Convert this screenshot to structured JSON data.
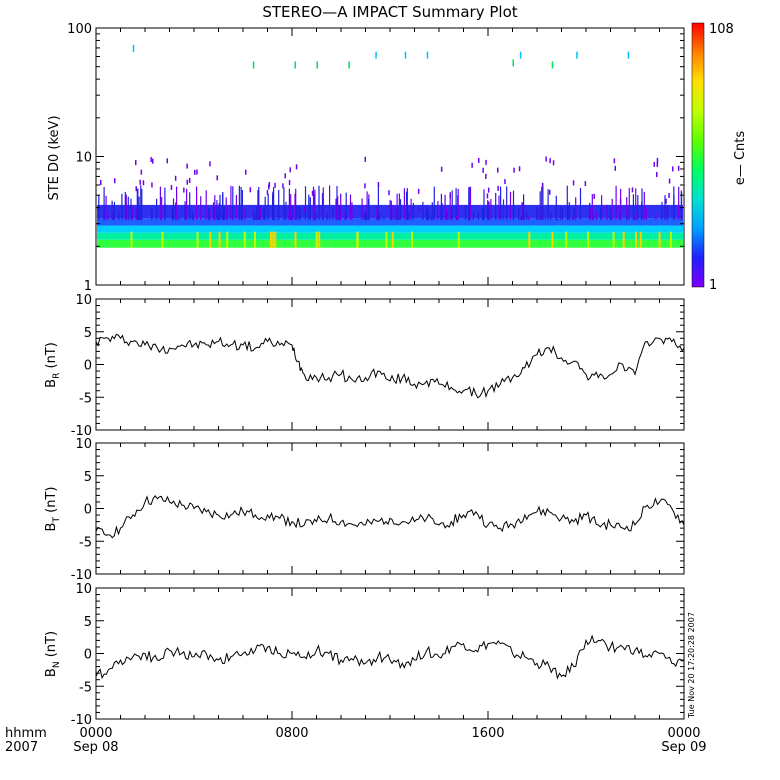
{
  "title": "STEREO—A IMPACT Summary Plot",
  "timestamp_note": "Tue Nov 20 17:20:28 2007",
  "x_axis": {
    "corner_top": "hhmm",
    "corner_bottom": "2007",
    "ticks": [
      {
        "hour": 0,
        "top": "0000",
        "bottom": "Sep 08"
      },
      {
        "hour": 8,
        "top": "0800",
        "bottom": ""
      },
      {
        "hour": 16,
        "top": "1600",
        "bottom": ""
      },
      {
        "hour": 24,
        "top": "0000",
        "bottom": "Sep 09"
      }
    ]
  },
  "colorbar": {
    "label": "e— Cnts",
    "max_label": "108",
    "min_label": "1",
    "colors": [
      "#7f00ff",
      "#2020ff",
      "#00a0ff",
      "#00e0d0",
      "#00ff60",
      "#60ff00",
      "#c0ff00",
      "#ffe000",
      "#ff8000",
      "#ff0000"
    ]
  },
  "chart_data": [
    {
      "type": "heatmap",
      "ylabel": "STE D0 (keV)",
      "yscale": "log",
      "ylim": [
        1,
        100
      ],
      "xlim": [
        0,
        24
      ],
      "y_ticks": [
        "1",
        "10",
        "100"
      ],
      "ylabel_lines": [
        "STE D0 (keV)"
      ],
      "description": "Electron count spectrogram; dense counts between ~2 and ~4 keV across the full day, sparse isolated counts at higher energies"
    },
    {
      "type": "line",
      "ylabel": "B_R (nT)",
      "ylabel_main": "B",
      "ylabel_sub": "R",
      "ylabel_unit": " (nT)",
      "ylim": [
        -10,
        10
      ],
      "xlim": [
        0,
        24
      ],
      "y_ticks": [
        "10",
        "5",
        "0",
        "-5",
        "-10"
      ],
      "x": [
        0,
        0.5,
        1,
        1.5,
        2,
        2.5,
        3,
        3.5,
        4,
        4.5,
        5,
        5.5,
        6,
        6.5,
        7,
        7.5,
        8,
        8.25,
        8.5,
        9,
        9.5,
        10,
        10.5,
        11,
        11.5,
        12,
        12.5,
        13,
        13.5,
        14,
        14.5,
        15,
        15.5,
        16,
        16.5,
        17,
        17.5,
        18,
        18.5,
        19,
        19.5,
        20,
        20.5,
        21,
        21.5,
        22,
        22.5,
        23,
        23.5,
        24
      ],
      "values": [
        3.5,
        4.0,
        4.0,
        3.5,
        3.0,
        2.5,
        2.5,
        3.0,
        3.0,
        3.0,
        3.5,
        3.0,
        3.0,
        2.5,
        3.5,
        3.0,
        3.0,
        0.5,
        -1.5,
        -2.0,
        -2.0,
        -1.5,
        -2.5,
        -2.0,
        -1.0,
        -2.5,
        -2.0,
        -3.0,
        -2.5,
        -3.0,
        -3.5,
        -4.0,
        -4.5,
        -4.0,
        -3.0,
        -2.0,
        -0.5,
        1.5,
        2.5,
        1.0,
        0.5,
        -1.5,
        -2.0,
        -1.5,
        0.0,
        -1.5,
        3.5,
        4.0,
        3.5,
        2.5
      ]
    },
    {
      "type": "line",
      "ylabel": "B_T (nT)",
      "ylabel_main": "B",
      "ylabel_sub": "T",
      "ylabel_unit": " (nT)",
      "ylim": [
        -10,
        10
      ],
      "xlim": [
        0,
        24
      ],
      "y_ticks": [
        "10",
        "5",
        "0",
        "-5",
        "-10"
      ],
      "x": [
        0,
        0.5,
        1,
        1.5,
        2,
        2.5,
        3,
        3.5,
        4,
        4.5,
        5,
        5.5,
        6,
        6.5,
        7,
        7.5,
        8,
        8.5,
        9,
        9.5,
        10,
        10.5,
        11,
        11.5,
        12,
        12.5,
        13,
        13.5,
        14,
        14.5,
        15,
        15.5,
        16,
        16.5,
        17,
        17.5,
        18,
        18.5,
        19,
        19.5,
        20,
        20.5,
        21,
        21.5,
        22,
        22.5,
        23,
        23.5,
        24
      ],
      "values": [
        -3.5,
        -4.0,
        -3.0,
        -1.0,
        1.0,
        1.5,
        1.0,
        0.5,
        0.0,
        -0.5,
        -1.0,
        -1.0,
        -0.5,
        -1.0,
        -1.0,
        -1.5,
        -2.0,
        -2.5,
        -2.0,
        -1.5,
        -2.0,
        -2.5,
        -2.5,
        -2.0,
        -1.5,
        -2.0,
        -2.0,
        -1.5,
        -2.5,
        -2.0,
        -1.0,
        -0.5,
        -2.5,
        -3.0,
        -2.5,
        -1.0,
        -0.5,
        -0.5,
        -1.5,
        -2.0,
        -1.0,
        -2.5,
        -2.5,
        -3.0,
        -2.5,
        0.5,
        1.0,
        0.0,
        -2.5
      ]
    },
    {
      "type": "line",
      "ylabel": "B_N (nT)",
      "ylabel_main": "B",
      "ylabel_sub": "N",
      "ylabel_unit": " (nT)",
      "ylim": [
        -10,
        10
      ],
      "xlim": [
        0,
        24
      ],
      "y_ticks": [
        "10",
        "5",
        "0",
        "-5",
        "-10"
      ],
      "x": [
        0,
        0.5,
        1,
        1.5,
        2,
        2.5,
        3,
        3.5,
        4,
        4.5,
        5,
        5.5,
        6,
        6.5,
        7,
        7.5,
        8,
        8.5,
        9,
        9.5,
        10,
        10.5,
        11,
        11.5,
        12,
        12.5,
        13,
        13.5,
        14,
        14.5,
        15,
        15.5,
        16,
        16.5,
        17,
        17.5,
        18,
        18.5,
        19,
        19.5,
        20,
        20.5,
        21,
        21.5,
        22,
        22.5,
        23,
        23.5,
        24
      ],
      "values": [
        -3.5,
        -2.5,
        -1.0,
        -0.5,
        0.0,
        -1.0,
        0.5,
        0.0,
        -0.5,
        0.0,
        -1.0,
        -0.5,
        0.0,
        0.5,
        1.0,
        0.0,
        0.0,
        -0.5,
        0.5,
        0.0,
        -1.0,
        -1.0,
        -1.5,
        -0.5,
        -1.0,
        -1.5,
        -1.0,
        0.5,
        -0.5,
        1.0,
        1.5,
        0.5,
        1.5,
        1.5,
        0.0,
        -0.5,
        -1.5,
        -2.0,
        -3.5,
        -2.0,
        2.0,
        2.0,
        1.0,
        1.0,
        0.5,
        -0.5,
        0.0,
        -1.5,
        -1.0
      ]
    }
  ]
}
